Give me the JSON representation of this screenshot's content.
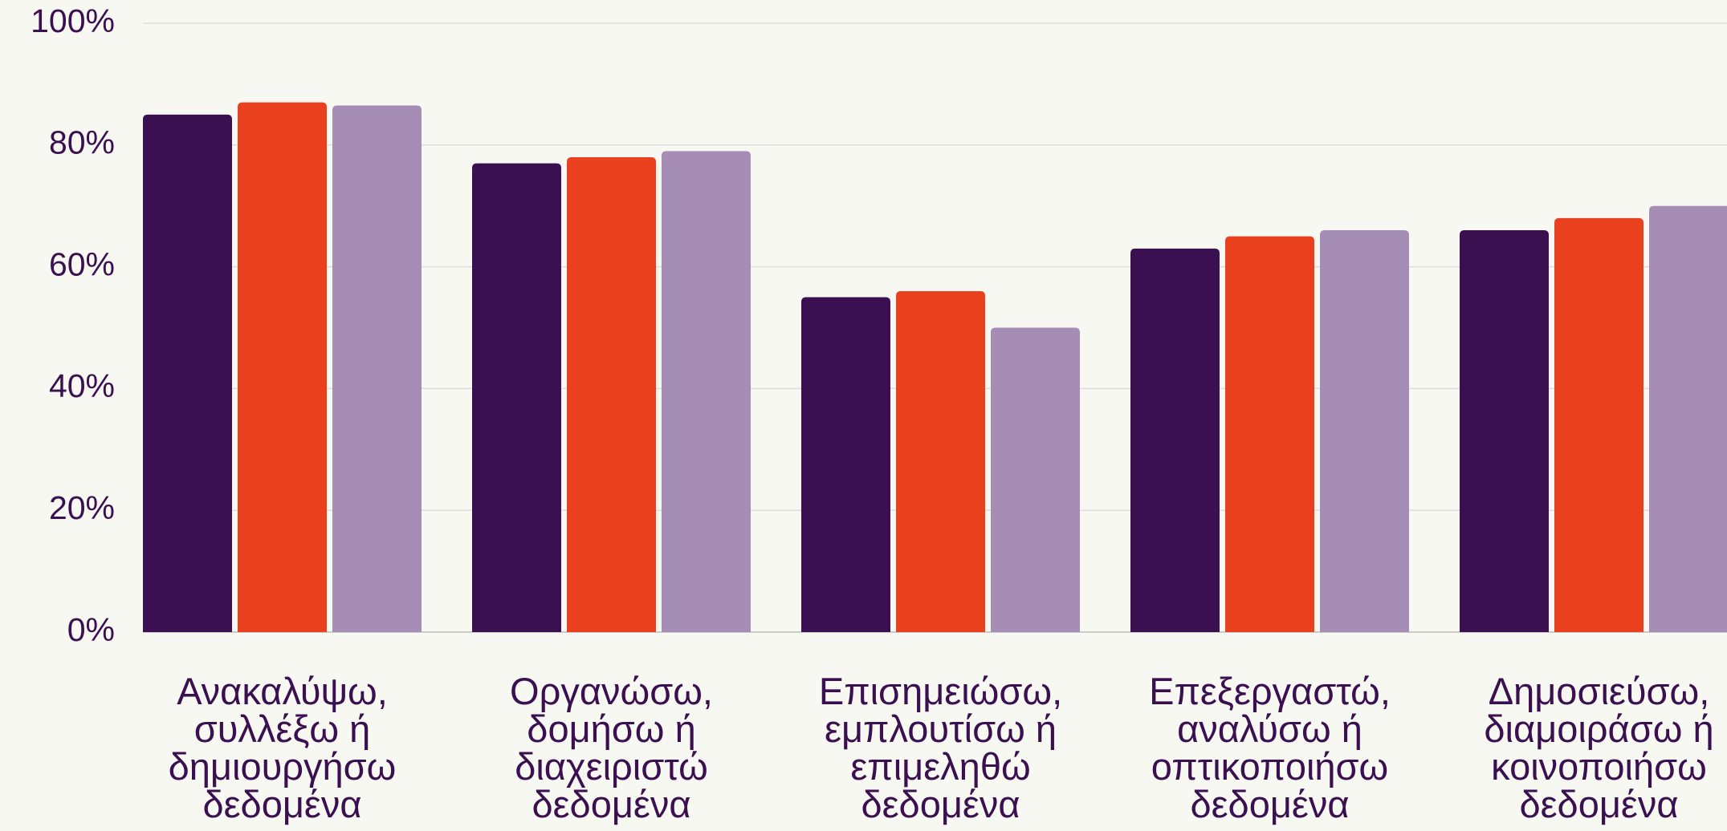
{
  "chart_data": {
    "type": "bar",
    "categories": [
      "Ανακαλύψω,\nσυλλέξω ή\nδημιουργήσω\nδεδομένα",
      "Οργανώσω,\nδομήσω ή\nδιαχειριστώ\nδεδομένα",
      "Επισημειώσω,\nεμπλουτίσω ή\nεπιμεληθώ\nδεδομένα",
      "Επεξεργαστώ,\nαναλύσω ή\nοπτικοποιήσω\nδεδομένα",
      "Δημοσιεύσω,\nδιαμοιράσω ή\nκοινοποιήσω\nδεδομένα"
    ],
    "series": [
      {
        "color": "#3b1050",
        "values": [
          85,
          77,
          55,
          63,
          66
        ]
      },
      {
        "color": "#e9401d",
        "values": [
          87,
          78,
          56,
          65,
          68
        ]
      },
      {
        "color": "#a58db5",
        "values": [
          86.5,
          79,
          50,
          66,
          70
        ]
      }
    ],
    "ylim": [
      0,
      100
    ],
    "yticks": [
      {
        "value": 0,
        "label": "0%"
      },
      {
        "value": 20,
        "label": "20%"
      },
      {
        "value": 40,
        "label": "40%"
      },
      {
        "value": 60,
        "label": "60%"
      },
      {
        "value": 80,
        "label": "80%"
      },
      {
        "value": 100,
        "label": "100%"
      }
    ],
    "grid": true
  }
}
